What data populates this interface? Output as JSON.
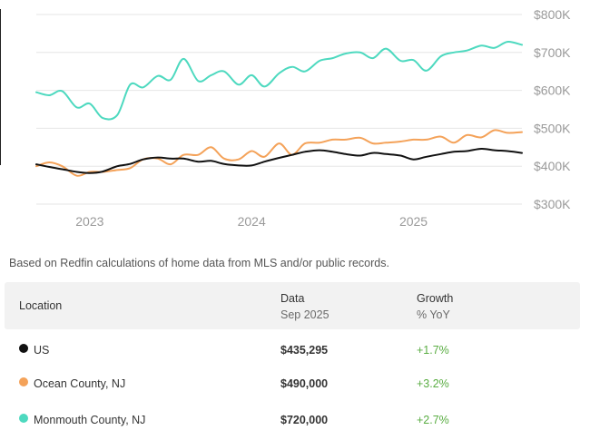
{
  "chart_data": {
    "type": "line",
    "ylim": [
      300,
      800
    ],
    "yticks": [
      800,
      700,
      600,
      500,
      400,
      300
    ],
    "ytick_labels": [
      "$800K",
      "$700K",
      "$600K",
      "$500K",
      "$400K",
      "$300K"
    ],
    "xticks": [
      2023,
      2024,
      2025
    ],
    "xtick_labels": [
      "2023",
      "2024",
      "2025"
    ],
    "xlim": [
      2022.67,
      2025.67
    ],
    "x_unit": "year (decimal)",
    "grid": true,
    "series": [
      {
        "name": "Monmouth County, NJ",
        "color": "#4dd9bf",
        "points": [
          [
            2022.67,
            595
          ],
          [
            2022.75,
            587
          ],
          [
            2022.83,
            598
          ],
          [
            2022.92,
            555
          ],
          [
            2023.0,
            565
          ],
          [
            2023.08,
            527
          ],
          [
            2023.17,
            535
          ],
          [
            2023.25,
            615
          ],
          [
            2023.33,
            608
          ],
          [
            2023.42,
            638
          ],
          [
            2023.5,
            628
          ],
          [
            2023.58,
            683
          ],
          [
            2023.67,
            625
          ],
          [
            2023.75,
            640
          ],
          [
            2023.83,
            650
          ],
          [
            2023.92,
            615
          ],
          [
            2024.0,
            640
          ],
          [
            2024.08,
            610
          ],
          [
            2024.17,
            645
          ],
          [
            2024.25,
            662
          ],
          [
            2024.33,
            650
          ],
          [
            2024.42,
            678
          ],
          [
            2024.5,
            685
          ],
          [
            2024.58,
            697
          ],
          [
            2024.67,
            700
          ],
          [
            2024.75,
            685
          ],
          [
            2024.83,
            710
          ],
          [
            2024.92,
            678
          ],
          [
            2025.0,
            680
          ],
          [
            2025.08,
            652
          ],
          [
            2025.17,
            690
          ],
          [
            2025.25,
            700
          ],
          [
            2025.33,
            705
          ],
          [
            2025.42,
            718
          ],
          [
            2025.5,
            712
          ],
          [
            2025.58,
            728
          ],
          [
            2025.67,
            720
          ]
        ]
      },
      {
        "name": "Ocean County, NJ",
        "color": "#f4a259",
        "points": [
          [
            2022.67,
            400
          ],
          [
            2022.75,
            410
          ],
          [
            2022.83,
            400
          ],
          [
            2022.92,
            375
          ],
          [
            2023.0,
            385
          ],
          [
            2023.08,
            385
          ],
          [
            2023.17,
            390
          ],
          [
            2023.25,
            395
          ],
          [
            2023.33,
            418
          ],
          [
            2023.42,
            420
          ],
          [
            2023.5,
            405
          ],
          [
            2023.58,
            430
          ],
          [
            2023.67,
            430
          ],
          [
            2023.75,
            450
          ],
          [
            2023.83,
            420
          ],
          [
            2023.92,
            418
          ],
          [
            2024.0,
            440
          ],
          [
            2024.08,
            425
          ],
          [
            2024.17,
            460
          ],
          [
            2024.25,
            430
          ],
          [
            2024.33,
            460
          ],
          [
            2024.42,
            462
          ],
          [
            2024.5,
            470
          ],
          [
            2024.58,
            470
          ],
          [
            2024.67,
            475
          ],
          [
            2024.75,
            460
          ],
          [
            2024.83,
            462
          ],
          [
            2024.92,
            465
          ],
          [
            2025.0,
            470
          ],
          [
            2025.08,
            470
          ],
          [
            2025.17,
            478
          ],
          [
            2025.25,
            462
          ],
          [
            2025.33,
            482
          ],
          [
            2025.42,
            476
          ],
          [
            2025.5,
            495
          ],
          [
            2025.58,
            488
          ],
          [
            2025.67,
            490
          ]
        ]
      },
      {
        "name": "US",
        "color": "#111111",
        "points": [
          [
            2022.67,
            405
          ],
          [
            2022.75,
            398
          ],
          [
            2022.83,
            392
          ],
          [
            2022.92,
            385
          ],
          [
            2023.0,
            382
          ],
          [
            2023.08,
            386
          ],
          [
            2023.17,
            400
          ],
          [
            2023.25,
            406
          ],
          [
            2023.33,
            418
          ],
          [
            2023.42,
            423
          ],
          [
            2023.5,
            420
          ],
          [
            2023.58,
            420
          ],
          [
            2023.67,
            412
          ],
          [
            2023.75,
            414
          ],
          [
            2023.83,
            406
          ],
          [
            2023.92,
            402
          ],
          [
            2024.0,
            402
          ],
          [
            2024.08,
            412
          ],
          [
            2024.17,
            422
          ],
          [
            2024.25,
            430
          ],
          [
            2024.33,
            438
          ],
          [
            2024.42,
            442
          ],
          [
            2024.5,
            438
          ],
          [
            2024.58,
            432
          ],
          [
            2024.67,
            428
          ],
          [
            2024.75,
            435
          ],
          [
            2024.83,
            432
          ],
          [
            2024.92,
            428
          ],
          [
            2025.0,
            418
          ],
          [
            2025.08,
            425
          ],
          [
            2025.17,
            432
          ],
          [
            2025.25,
            438
          ],
          [
            2025.33,
            440
          ],
          [
            2025.42,
            446
          ],
          [
            2025.5,
            442
          ],
          [
            2025.58,
            440
          ],
          [
            2025.67,
            435
          ]
        ]
      }
    ]
  },
  "note": "Based on Redfin calculations of home data from MLS and/or public records.",
  "table": {
    "headers": {
      "location": "Location",
      "data": "Data",
      "data_sub": "Sep 2025",
      "growth": "Growth",
      "growth_sub": "% YoY"
    },
    "rows": [
      {
        "name": "US",
        "value": "$435,295",
        "growth": "+1.7%",
        "color": "#111111"
      },
      {
        "name": "Ocean County, NJ",
        "value": "$490,000",
        "growth": "+3.2%",
        "color": "#f4a259"
      },
      {
        "name": "Monmouth County, NJ",
        "value": "$720,000",
        "growth": "+2.7%",
        "color": "#4dd9bf"
      }
    ]
  }
}
